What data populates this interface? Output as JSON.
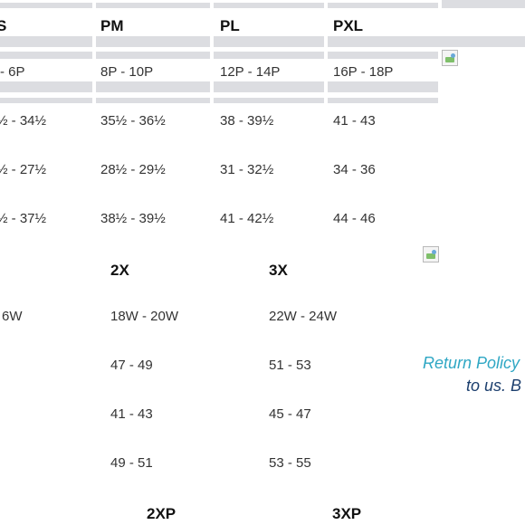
{
  "petite_table": {
    "headers": [
      "S",
      "PM",
      "PL",
      "PXL"
    ],
    "rows": [
      [
        "- 6P",
        "8P - 10P",
        "12P - 14P",
        "16P - 18P"
      ],
      [
        "½ - 34½",
        "35½ - 36½",
        "38 - 39½",
        "41 - 43"
      ],
      [
        "½ - 27½",
        "28½ - 29½",
        "31 - 32½",
        "34 - 36"
      ],
      [
        "½ - 37½",
        "38½ - 39½",
        "41 - 42½",
        "44 - 46"
      ]
    ]
  },
  "women_table": {
    "headers": [
      "2X",
      "3X"
    ],
    "rows": [
      [
        "6W",
        "18W - 20W",
        "22W - 24W"
      ],
      [
        "",
        "47 - 49",
        "51 - 53"
      ],
      [
        "",
        "41 - 43",
        "45 - 47"
      ],
      [
        "",
        "49 - 51",
        "53 - 55"
      ]
    ]
  },
  "women_petite_headers": [
    "2XP",
    "3XP"
  ],
  "return_policy": {
    "link_text": "Return Policy",
    "text": "to us. B"
  },
  "colors": {
    "header_bar": "#dcdde1",
    "link": "#2fa7c4",
    "body_text": "#1c3f6e"
  },
  "icons": [
    "broken-image-icon",
    "broken-image-icon"
  ]
}
